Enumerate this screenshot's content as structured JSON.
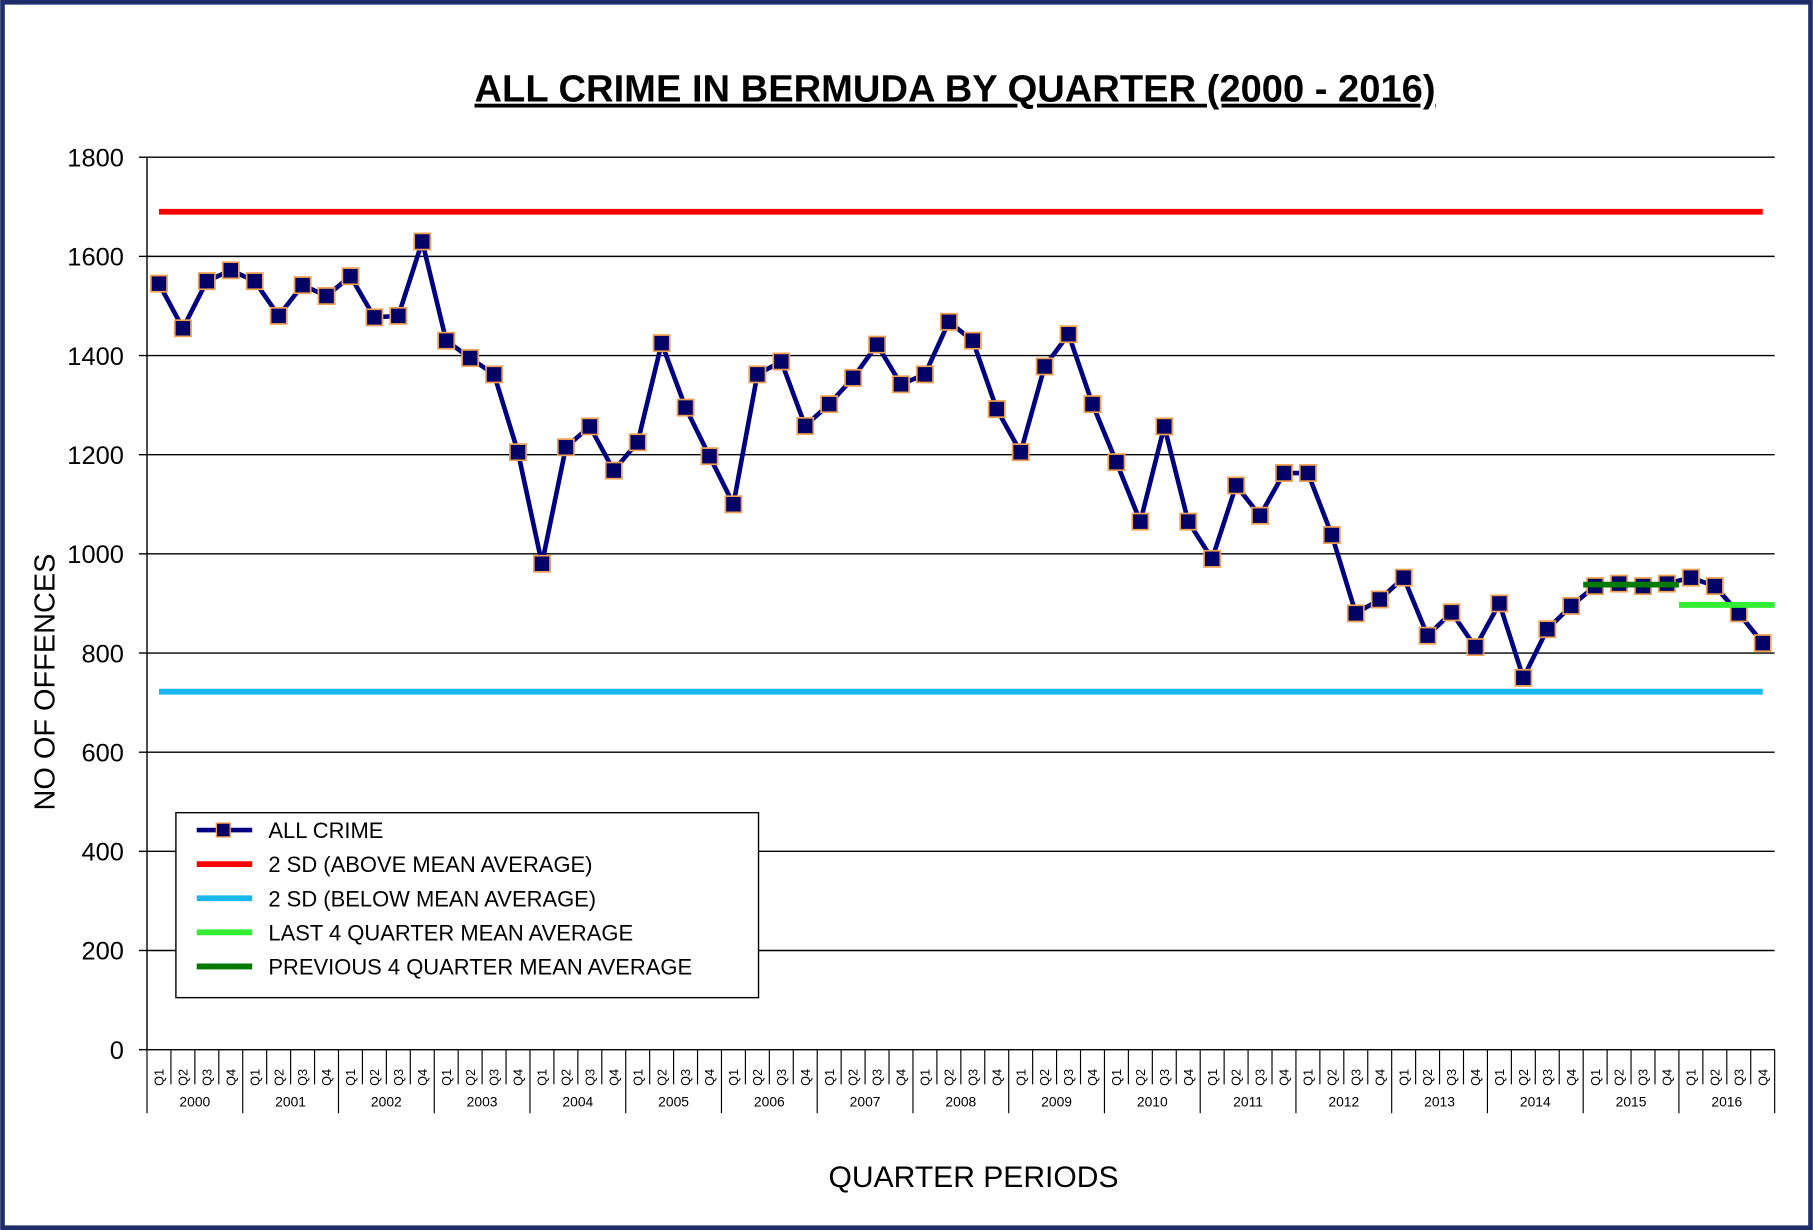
{
  "chart_data": {
    "type": "line",
    "title": "ALL CRIME IN BERMUDA  BY QUARTER (2000 - 2016)",
    "y_label": "NO OF OFFENCES",
    "x_label": "QUARTER PERIODS",
    "categories": [
      "Q1",
      "Q2",
      "Q3",
      "Q4",
      "Q1",
      "Q2",
      "Q3",
      "Q4",
      "Q1",
      "Q2",
      "Q3",
      "Q4",
      "Q1",
      "Q2",
      "Q3",
      "Q4",
      "Q1",
      "Q2",
      "Q3",
      "Q4",
      "Q1",
      "Q2",
      "Q3",
      "Q4",
      "Q1",
      "Q2",
      "Q3",
      "Q4",
      "Q1",
      "Q2",
      "Q3",
      "Q4",
      "Q1",
      "Q2",
      "Q3",
      "Q4",
      "Q1",
      "Q2",
      "Q3",
      "Q4",
      "Q1",
      "Q2",
      "Q3",
      "Q4",
      "Q1",
      "Q2",
      "Q3",
      "Q4",
      "Q1",
      "Q2",
      "Q3",
      "Q4",
      "Q1",
      "Q2",
      "Q3",
      "Q4",
      "Q1",
      "Q2",
      "Q3",
      "Q4",
      "Q1",
      "Q2",
      "Q3",
      "Q4",
      "Q1",
      "Q2",
      "Q3",
      "Q4"
    ],
    "years": [
      "2000",
      "2001",
      "2002",
      "2003",
      "2004",
      "2005",
      "2006",
      "2007",
      "2008",
      "2009",
      "2010",
      "2011",
      "2012",
      "2013",
      "2014",
      "2015",
      "2016"
    ],
    "ylim": [
      0,
      1800
    ],
    "yticks": [
      0,
      200,
      400,
      600,
      800,
      1000,
      1200,
      1400,
      1600,
      1800
    ],
    "grid": true,
    "legend": "lower left",
    "series": [
      {
        "name": "ALL CRIME",
        "color": "#000080",
        "marker_fill": "#000066",
        "marker_edge": "#f0a050",
        "values": [
          1545,
          1455,
          1550,
          1572,
          1550,
          1480,
          1542,
          1520,
          1560,
          1477,
          1480,
          1630,
          1430,
          1395,
          1362,
          1205,
          980,
          1215,
          1257,
          1168,
          1225,
          1425,
          1295,
          1197,
          1100,
          1362,
          1388,
          1258,
          1302,
          1355,
          1422,
          1342,
          1362,
          1468,
          1430,
          1292,
          1205,
          1378,
          1443,
          1302,
          1185,
          1065,
          1257,
          1065,
          990,
          1138,
          1077,
          1163,
          1163,
          1038,
          880,
          908,
          952,
          835,
          882,
          812,
          900,
          750,
          848,
          895,
          935,
          940,
          935,
          940,
          952,
          935,
          880,
          820
        ]
      },
      {
        "name": "2 SD (ABOVE MEAN AVERAGE)",
        "color": "#ff0000",
        "value": 1690
      },
      {
        "name": "2 SD (BELOW MEAN AVERAGE)",
        "color": "#1ab8ee",
        "value": 722
      },
      {
        "name": "LAST 4 QUARTER MEAN AVERAGE",
        "color": "#33ee33",
        "values": [
          null,
          null,
          null,
          null,
          null,
          null,
          null,
          null,
          null,
          null,
          null,
          null,
          null,
          null,
          null,
          null,
          null,
          null,
          null,
          null,
          null,
          null,
          null,
          null,
          null,
          null,
          null,
          null,
          null,
          null,
          null,
          null,
          null,
          null,
          null,
          null,
          null,
          null,
          null,
          null,
          null,
          null,
          null,
          null,
          null,
          null,
          null,
          null,
          null,
          null,
          null,
          null,
          null,
          null,
          null,
          null,
          null,
          null,
          null,
          null,
          null,
          null,
          null,
          null,
          897,
          897,
          897,
          897
        ]
      },
      {
        "name": "PREVIOUS 4 QUARTER MEAN AVERAGE",
        "color": "#007a00",
        "values": [
          null,
          null,
          null,
          null,
          null,
          null,
          null,
          null,
          null,
          null,
          null,
          null,
          null,
          null,
          null,
          null,
          null,
          null,
          null,
          null,
          null,
          null,
          null,
          null,
          null,
          null,
          null,
          null,
          null,
          null,
          null,
          null,
          null,
          null,
          null,
          null,
          null,
          null,
          null,
          null,
          null,
          null,
          null,
          null,
          null,
          null,
          null,
          null,
          null,
          null,
          null,
          null,
          null,
          null,
          null,
          null,
          null,
          null,
          null,
          null,
          938,
          938,
          938,
          938,
          null,
          null,
          null,
          null
        ]
      }
    ]
  }
}
